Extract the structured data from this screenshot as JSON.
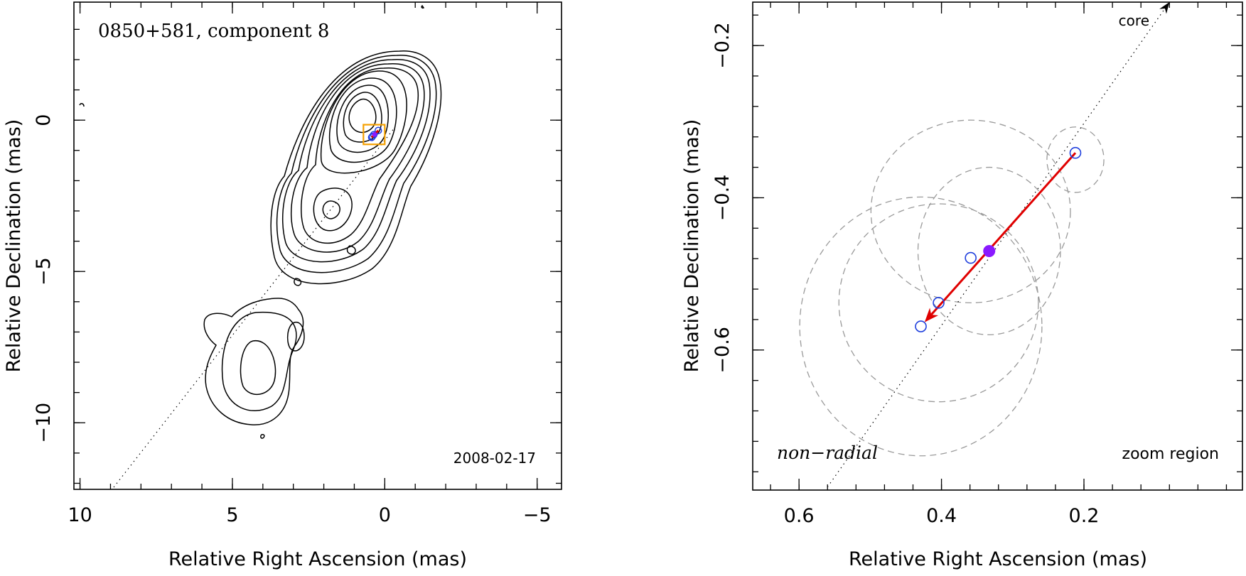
{
  "chart_data": [
    {
      "type": "contour",
      "title": "0850+581, component 8",
      "epoch": "2008-02-17",
      "xlabel": "Relative Right Ascension (mas)",
      "ylabel": "Relative Declination (mas)",
      "xlim": [
        10.2,
        -5.8
      ],
      "ylim": [
        -12.2,
        3.9
      ],
      "xticks": [
        10,
        5,
        0,
        -5
      ],
      "xtick_labels": [
        "10",
        "5",
        "0",
        "−5"
      ],
      "yticks": [
        0,
        -5,
        -10
      ],
      "ytick_labels": [
        "0",
        "−5",
        "−10"
      ],
      "contour_levels": 10,
      "trajectory_color": "#e00000",
      "zoom_box_color": "#f5a000",
      "position_marker_color": "#1f3fdd",
      "highlight_marker_color": "#8a1aff",
      "zoom_box": {
        "ra": [
          0.7,
          0.0
        ],
        "dec": [
          -0.8,
          -0.15
        ]
      }
    },
    {
      "type": "scatter",
      "label": "zoom region",
      "motion_class": "non−radial",
      "core_label": "core",
      "xlabel": "Relative Right Ascension (mas)",
      "ylabel": "Relative Declination (mas)",
      "xlim": [
        0.665,
        -0.0225
      ],
      "ylim": [
        -0.784,
        -0.143
      ],
      "xticks": [
        0.6,
        0.4,
        0.2
      ],
      "xtick_labels": [
        "0.6",
        "0.4",
        "0.2"
      ],
      "yticks": [
        -0.2,
        -0.4,
        -0.6
      ],
      "ytick_labels": [
        "−0.2",
        "−0.4",
        "−0.6"
      ],
      "positions": [
        {
          "ra": 0.212,
          "dec": -0.341
        },
        {
          "ra": 0.359,
          "dec": -0.479
        },
        {
          "ra": 0.404,
          "dec": -0.538
        },
        {
          "ra": 0.429,
          "dec": -0.569
        }
      ],
      "highlighted_position": {
        "ra": 0.333,
        "dec": -0.47
      },
      "trajectory": {
        "from": {
          "ra": 0.212,
          "dec": -0.341
        },
        "to": {
          "ra": 0.429,
          "dec": -0.569
        }
      },
      "beam_ellipses": [
        {
          "ra": 0.212,
          "dec": -0.35,
          "a": 0.04,
          "b": 0.043
        },
        {
          "ra": 0.333,
          "dec": -0.47,
          "a": 0.1,
          "b": 0.11
        },
        {
          "ra": 0.359,
          "dec": -0.418,
          "a": 0.14,
          "b": 0.12
        },
        {
          "ra": 0.404,
          "dec": -0.538,
          "a": 0.14,
          "b": 0.13
        },
        {
          "ra": 0.429,
          "dec": -0.569,
          "a": 0.17,
          "b": 0.17
        }
      ],
      "ridge_line": {
        "from": {
          "ra": 0.56,
          "dec": -0.78
        },
        "to": {
          "ra": 0.08,
          "dec": -0.143
        }
      }
    }
  ]
}
